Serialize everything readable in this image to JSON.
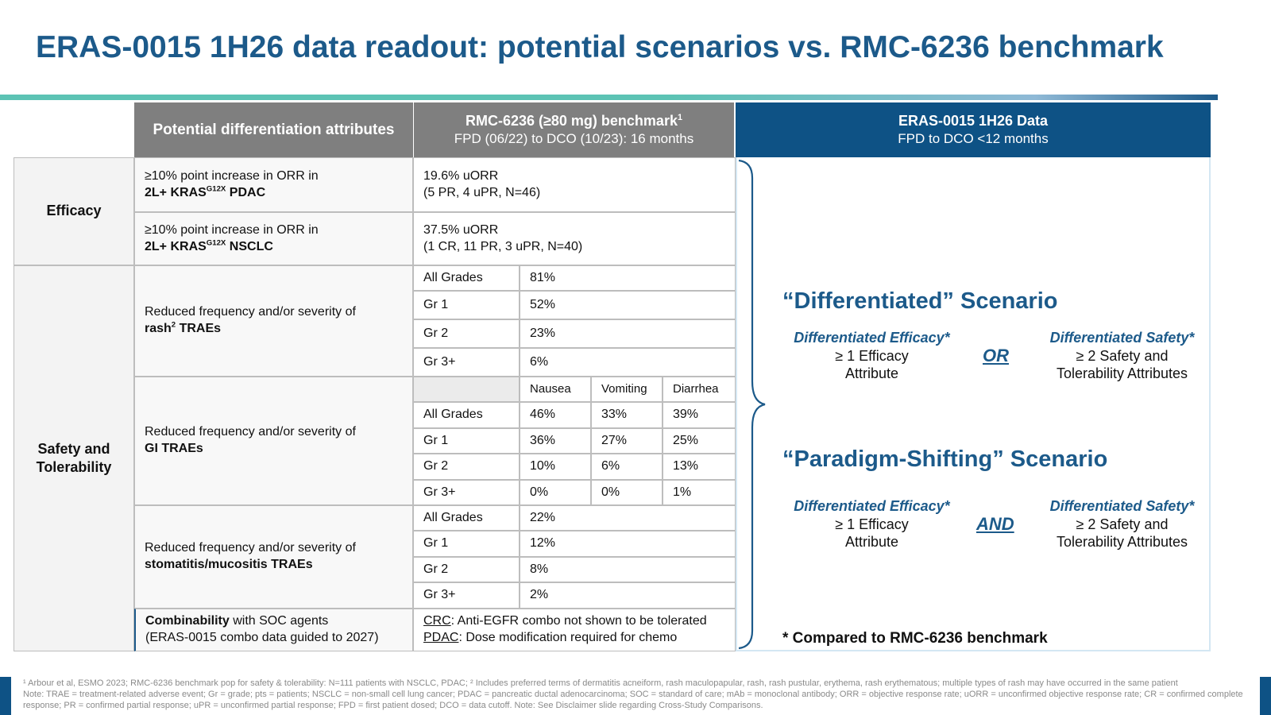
{
  "title": "ERAS-0015 1H26 data readout: potential scenarios vs. RMC-6236 benchmark",
  "headers": {
    "attributes": "Potential differentiation attributes",
    "rmc_line1": "RMC-6236 (≥80 mg) benchmark",
    "rmc_sup": "1",
    "rmc_line2": "FPD (06/22) to DCO (10/23): 16 months",
    "eras_line1": "ERAS-0015 1H26 Data",
    "eras_line2": "FPD to DCO <12 months"
  },
  "categories": {
    "efficacy": "Efficacy",
    "safety_line1": "Safety and",
    "safety_line2": "Tolerability"
  },
  "efficacy_rows": [
    {
      "attr_line1": "≥10% point increase in ORR in",
      "attr_bold_a": "2L+ KRAS",
      "attr_sup": "G12X",
      "attr_bold_b": " PDAC",
      "val_line1": "19.6% uORR",
      "val_line2": "(5 PR, 4 uPR, N=46)"
    },
    {
      "attr_line1": "≥10% point increase in ORR in",
      "attr_bold_a": "2L+ KRAS",
      "attr_sup": "G12X",
      "attr_bold_b": " NSCLC",
      "val_line1": "37.5% uORR",
      "val_line2": "(1 CR, 11 PR, 3 uPR, N=40)"
    }
  ],
  "rash": {
    "attr_line1": "Reduced frequency and/or severity of",
    "attr_bold": "rash",
    "attr_sup": "2",
    "attr_bold_b": " TRAEs",
    "rows": [
      {
        "grade": "All Grades",
        "value": "81%"
      },
      {
        "grade": "Gr 1",
        "value": "52%"
      },
      {
        "grade": "Gr 2",
        "value": "23%"
      },
      {
        "grade": "Gr 3+",
        "value": "6%"
      }
    ]
  },
  "gi": {
    "attr_line1": "Reduced frequency and/or severity of",
    "attr_bold": "GI TRAEs",
    "columns": [
      "Nausea",
      "Vomiting",
      "Diarrhea"
    ],
    "rows": [
      {
        "grade": "All Grades",
        "values": [
          "46%",
          "33%",
          "39%"
        ]
      },
      {
        "grade": "Gr 1",
        "values": [
          "36%",
          "27%",
          "25%"
        ]
      },
      {
        "grade": "Gr 2",
        "values": [
          "10%",
          "6%",
          "13%"
        ]
      },
      {
        "grade": "Gr 3+",
        "values": [
          "0%",
          "0%",
          "1%"
        ]
      }
    ]
  },
  "stomatitis": {
    "attr_line1": "Reduced frequency and/or severity of",
    "attr_bold": "stomatitis/mucositis TRAEs",
    "rows": [
      {
        "grade": "All Grades",
        "value": "22%"
      },
      {
        "grade": "Gr 1",
        "value": "12%"
      },
      {
        "grade": "Gr 2",
        "value": "8%"
      },
      {
        "grade": "Gr 3+",
        "value": "2%"
      }
    ]
  },
  "combinability": {
    "attr_bold": "Combinability",
    "attr_rest": " with SOC agents",
    "attr_line2": "(ERAS-0015 combo data guided to 2027)",
    "crc_label": "CRC",
    "crc_text": ": Anti-EGFR combo not shown to be tolerated",
    "pdac_label": "PDAC",
    "pdac_text": ": Dose modification required for chemo"
  },
  "scenarios": [
    {
      "title": "“Differentiated” Scenario",
      "left_head": "Differentiated Efficacy*",
      "left_l1": "≥ 1 Efficacy",
      "left_l2": "Attribute",
      "conjunction": "OR",
      "right_head": "Differentiated Safety*",
      "right_l1": "≥ 2 Safety and",
      "right_l2": "Tolerability Attributes"
    },
    {
      "title": "“Paradigm-Shifting” Scenario",
      "left_head": "Differentiated Efficacy*",
      "left_l1": "≥ 1 Efficacy",
      "left_l2": "Attribute",
      "conjunction": "AND",
      "right_head": "Differentiated Safety*",
      "right_l1": "≥ 2 Safety and",
      "right_l2": "Tolerability Attributes"
    }
  ],
  "benchmark_note": "* Compared to RMC-6236 benchmark",
  "footnote": {
    "line1": "¹ Arbour et al, ESMO 2023; RMC-6236 benchmark pop for safety & tolerability: N=111 patients with NSCLC, PDAC; ² Includes preferred terms of dermatitis acneiform, rash maculopapular, rash, rash pustular, erythema, rash erythematous; multiple types of rash may have occurred in the same patient",
    "line2": "Note: TRAE = treatment-related adverse event; Gr = grade; pts = patients; NSCLC = non-small cell lung cancer; PDAC = pancreatic ductal adenocarcinoma; SOC = standard of care; mAb = monoclonal antibody; ORR = objective response rate; uORR = unconfirmed objective response rate; CR = confirmed complete response; PR = confirmed partial response; uPR = unconfirmed partial response; FPD = first patient dosed; DCO = data cutoff. Note: See Disclaimer slide regarding Cross-Study Comparisons."
  },
  "colors": {
    "brand_blue": "#1c5a8a",
    "header_dark_blue": "#0e5285",
    "header_gray": "#7f7f7f",
    "rule_teal": "#5cc3b4"
  }
}
